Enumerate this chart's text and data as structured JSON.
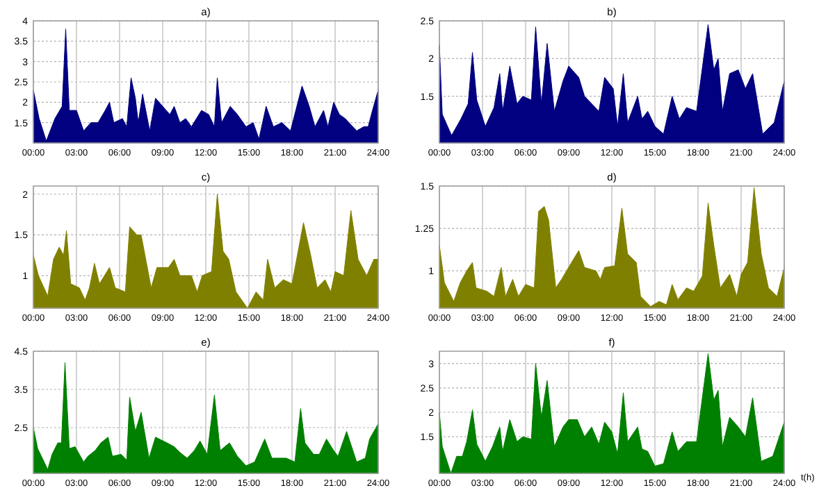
{
  "chart_data": [
    {
      "type": "area",
      "title": "a)",
      "color": "#000080",
      "grid": true,
      "xlim": [
        0,
        24
      ],
      "xticks": [
        {
          "value": 0,
          "label": "00:00"
        },
        {
          "value": 3,
          "label": "03:00"
        },
        {
          "value": 6,
          "label": "06:00"
        },
        {
          "value": 9,
          "label": "09:00"
        },
        {
          "value": 12,
          "label": "12:00"
        },
        {
          "value": 15,
          "label": "15:00"
        },
        {
          "value": 18,
          "label": "18:00"
        },
        {
          "value": 21,
          "label": "21:00"
        },
        {
          "value": 24,
          "label": "24:00"
        }
      ],
      "ylim": [
        1,
        4
      ],
      "yticks": [
        1.5,
        2,
        2.5,
        3,
        3.5,
        4
      ],
      "x": [
        0,
        0.4,
        0.9,
        1.5,
        2.0,
        2.25,
        2.5,
        3.0,
        3.5,
        4.0,
        4.5,
        5.0,
        5.3,
        5.6,
        6.2,
        6.5,
        6.8,
        7.1,
        7.3,
        7.6,
        8.1,
        8.5,
        9.0,
        9.5,
        9.8,
        10.2,
        10.6,
        11.0,
        11.7,
        12.2,
        12.6,
        12.8,
        13.1,
        13.7,
        14.2,
        14.8,
        15.3,
        15.7,
        16.2,
        16.7,
        17.3,
        17.9,
        18.7,
        19.2,
        19.6,
        20.2,
        20.5,
        20.9,
        21.3,
        21.7,
        22.5,
        23.0,
        23.3,
        23.6,
        24
      ],
      "values": [
        2.3,
        1.6,
        1.05,
        1.6,
        1.9,
        3.8,
        1.8,
        1.8,
        1.3,
        1.5,
        1.5,
        1.8,
        2.0,
        1.5,
        1.6,
        1.4,
        2.6,
        2.1,
        1.5,
        2.2,
        1.3,
        2.1,
        1.9,
        1.7,
        1.9,
        1.5,
        1.6,
        1.4,
        1.8,
        1.7,
        1.4,
        2.6,
        1.5,
        1.9,
        1.7,
        1.4,
        1.5,
        1.1,
        1.9,
        1.4,
        1.5,
        1.3,
        2.4,
        1.9,
        1.4,
        1.8,
        1.4,
        2.0,
        1.7,
        1.6,
        1.3,
        1.4,
        1.4,
        1.8,
        2.3
      ]
    },
    {
      "type": "area",
      "title": "b)",
      "color": "#000080",
      "grid": true,
      "xlim": [
        0,
        24
      ],
      "xticks": [
        {
          "value": 0,
          "label": "00:00"
        },
        {
          "value": 3,
          "label": "03:00"
        },
        {
          "value": 6,
          "label": "06:00"
        },
        {
          "value": 9,
          "label": "09:00"
        },
        {
          "value": 12,
          "label": "12:00"
        },
        {
          "value": 15,
          "label": "15:00"
        },
        {
          "value": 18,
          "label": "18:00"
        },
        {
          "value": 21,
          "label": "21:00"
        },
        {
          "value": 24,
          "label": "24:00"
        }
      ],
      "ylim": [
        0.88,
        2.5
      ],
      "yticks": [
        1.5,
        2,
        2.5
      ],
      "x": [
        0,
        0.2,
        0.85,
        1.5,
        2,
        2.3,
        2.6,
        3.2,
        3.8,
        4.2,
        4.4,
        4.9,
        5.4,
        5.8,
        6.4,
        6.7,
        7.1,
        7.5,
        8,
        8.6,
        9.0,
        9.7,
        10.1,
        10.6,
        11.1,
        11.5,
        12.1,
        12.4,
        12.8,
        13.1,
        13.8,
        14.1,
        14.5,
        15,
        15.6,
        16.2,
        16.7,
        17.2,
        17.9,
        18.7,
        19.1,
        19.4,
        19.7,
        20.2,
        20.8,
        21.3,
        21.8,
        22.5,
        23.3,
        24
      ],
      "values": [
        2.18,
        1.26,
        0.98,
        1.2,
        1.4,
        2.08,
        1.45,
        1.1,
        1.35,
        1.8,
        1.3,
        1.9,
        1.4,
        1.5,
        1.45,
        2.42,
        1.4,
        2.2,
        1.3,
        1.7,
        1.9,
        1.75,
        1.5,
        1.4,
        1.3,
        1.75,
        1.6,
        1.1,
        1.8,
        1.15,
        1.5,
        1.2,
        1.3,
        1.1,
        1.0,
        1.5,
        1.2,
        1.35,
        1.3,
        2.45,
        1.85,
        2.0,
        1.3,
        1.8,
        1.85,
        1.6,
        1.8,
        1.0,
        1.15,
        1.7
      ]
    },
    {
      "type": "area",
      "title": "c)",
      "color": "#808000",
      "grid": true,
      "xlim": [
        0,
        24
      ],
      "xticks": [
        {
          "value": 0,
          "label": "00:00"
        },
        {
          "value": 3,
          "label": "03:00"
        },
        {
          "value": 6,
          "label": "06:00"
        },
        {
          "value": 9,
          "label": "09:00"
        },
        {
          "value": 12,
          "label": "12:00"
        },
        {
          "value": 15,
          "label": "15:00"
        },
        {
          "value": 18,
          "label": "18:00"
        },
        {
          "value": 21,
          "label": "21:00"
        },
        {
          "value": 24,
          "label": "24:00"
        }
      ],
      "ylim": [
        0.6,
        2.1
      ],
      "yticks": [
        1,
        1.5,
        2
      ],
      "x": [
        0,
        0.35,
        1,
        1.4,
        1.8,
        2.1,
        2.3,
        2.6,
        3.2,
        3.6,
        3.9,
        4.25,
        4.6,
        5.3,
        5.7,
        6.4,
        6.7,
        7.2,
        7.5,
        8.2,
        8.6,
        9.4,
        9.8,
        10.2,
        11,
        11.4,
        11.75,
        12.4,
        12.8,
        13.2,
        13.6,
        14.1,
        14.9,
        15.5,
        16,
        16.3,
        16.8,
        17.4,
        18,
        18.8,
        19.3,
        19.75,
        20.3,
        20.7,
        21,
        21.6,
        22.1,
        22.6,
        23.2,
        23.7,
        24
      ],
      "values": [
        1.25,
        1.0,
        0.75,
        1.2,
        1.35,
        1.25,
        1.55,
        0.9,
        0.85,
        0.7,
        0.85,
        1.15,
        0.9,
        1.1,
        0.85,
        0.8,
        1.6,
        1.5,
        1.5,
        0.85,
        1.1,
        1.1,
        1.2,
        1.0,
        1.0,
        0.8,
        1.0,
        1.05,
        2.0,
        1.3,
        1.2,
        0.8,
        0.6,
        0.8,
        0.7,
        1.2,
        0.85,
        0.95,
        0.9,
        1.65,
        1.25,
        0.85,
        0.95,
        0.8,
        1.05,
        1.0,
        1.8,
        1.2,
        1.0,
        1.2,
        1.2
      ]
    },
    {
      "type": "area",
      "title": "d)",
      "color": "#808000",
      "grid": true,
      "xlim": [
        0,
        24
      ],
      "xticks": [
        {
          "value": 0,
          "label": "00:00"
        },
        {
          "value": 3,
          "label": "03:00"
        },
        {
          "value": 6,
          "label": "06:00"
        },
        {
          "value": 9,
          "label": "09:00"
        },
        {
          "value": 12,
          "label": "12:00"
        },
        {
          "value": 15,
          "label": "15:00"
        },
        {
          "value": 18,
          "label": "18:00"
        },
        {
          "value": 21,
          "label": "21:00"
        },
        {
          "value": 24,
          "label": "24:00"
        }
      ],
      "ylim": [
        0.78,
        1.5
      ],
      "yticks": [
        1,
        1.25,
        1.5
      ],
      "x": [
        0,
        0.35,
        1,
        1.45,
        1.9,
        2.3,
        2.55,
        3.3,
        3.8,
        4.3,
        4.6,
        5.1,
        5.5,
        6,
        6.6,
        6.9,
        7.3,
        7.6,
        8.1,
        8.5,
        9.2,
        9.7,
        10.1,
        10.9,
        11.2,
        11.5,
        12.2,
        12.7,
        13.1,
        13.7,
        14,
        14.7,
        15.3,
        15.8,
        16.2,
        16.6,
        17.2,
        17.7,
        18.3,
        18.7,
        19.1,
        19.55,
        20.2,
        20.7,
        21,
        21.45,
        21.9,
        22.4,
        22.9,
        23.5,
        24
      ],
      "values": [
        1.15,
        0.93,
        0.82,
        0.93,
        1.0,
        1.05,
        0.9,
        0.88,
        0.85,
        1.02,
        0.85,
        0.95,
        0.85,
        0.92,
        0.9,
        1.35,
        1.38,
        1.3,
        0.9,
        0.95,
        1.05,
        1.12,
        1.02,
        1.0,
        0.95,
        1.02,
        1.03,
        1.37,
        1.1,
        1.05,
        0.85,
        0.79,
        0.82,
        0.8,
        0.92,
        0.83,
        0.9,
        0.88,
        0.97,
        1.4,
        1.15,
        0.9,
        0.98,
        0.85,
        0.98,
        1.05,
        1.49,
        1.1,
        0.9,
        0.85,
        1.02
      ]
    },
    {
      "type": "area",
      "title": "e)",
      "color": "#008000",
      "grid": true,
      "xlim": [
        0,
        24
      ],
      "xticks": [
        {
          "value": 0,
          "label": "00:00"
        },
        {
          "value": 3,
          "label": "03:00"
        },
        {
          "value": 6,
          "label": "06:00"
        },
        {
          "value": 9,
          "label": "09:00"
        },
        {
          "value": 12,
          "label": "12:00"
        },
        {
          "value": 15,
          "label": "15:00"
        },
        {
          "value": 18,
          "label": "18:00"
        },
        {
          "value": 21,
          "label": "21:00"
        },
        {
          "value": 24,
          "label": "24:00"
        }
      ],
      "ylim": [
        1.3,
        4.5
      ],
      "yticks": [
        2.5,
        3.5,
        4.5
      ],
      "x": [
        0,
        0.3,
        0.75,
        1,
        1.3,
        1.7,
        1.95,
        2.2,
        2.5,
        2.9,
        3.5,
        3.8,
        4.3,
        4.7,
        5.2,
        5.5,
        6.1,
        6.5,
        6.7,
        7.1,
        7.5,
        8.05,
        8.5,
        9.3,
        9.8,
        10.2,
        10.7,
        11.2,
        11.6,
        12.1,
        12.6,
        13,
        13.65,
        14.2,
        14.8,
        15.4,
        16.1,
        16.6,
        17.6,
        18.2,
        18.6,
        18.9,
        19.5,
        19.9,
        20.4,
        20.9,
        21.2,
        21.8,
        22.5,
        23.1,
        23.4,
        24
      ],
      "values": [
        2.5,
        1.95,
        1.6,
        1.4,
        1.8,
        2.1,
        2.1,
        4.2,
        1.95,
        2.0,
        1.6,
        1.75,
        1.9,
        2.1,
        2.25,
        1.75,
        1.8,
        1.65,
        3.3,
        2.4,
        2.9,
        1.7,
        2.25,
        2.1,
        2.0,
        1.85,
        1.7,
        1.9,
        2.15,
        1.8,
        3.35,
        1.9,
        2.1,
        1.75,
        1.5,
        1.6,
        2.2,
        1.7,
        1.7,
        1.6,
        3.0,
        2.1,
        1.8,
        1.8,
        2.2,
        1.9,
        1.75,
        2.4,
        1.6,
        1.7,
        2.2,
        2.6
      ]
    },
    {
      "type": "area",
      "title": "f)",
      "xlabel": "t(h)",
      "color": "#008000",
      "grid": true,
      "xlim": [
        0,
        24
      ],
      "xticks": [
        {
          "value": 0,
          "label": "00:00"
        },
        {
          "value": 3,
          "label": "03:00"
        },
        {
          "value": 6,
          "label": "06:00"
        },
        {
          "value": 9,
          "label": "09:00"
        },
        {
          "value": 12,
          "label": "12:00"
        },
        {
          "value": 15,
          "label": "15:00"
        },
        {
          "value": 18,
          "label": "18:00"
        },
        {
          "value": 21,
          "label": "21:00"
        },
        {
          "value": 24,
          "label": "24:00"
        }
      ],
      "ylim": [
        0.75,
        3.25
      ],
      "yticks": [
        1.5,
        2,
        2.5,
        3
      ],
      "x": [
        0,
        0.2,
        0.8,
        1.2,
        1.6,
        1.9,
        2.3,
        2.6,
        3.2,
        3.7,
        4.2,
        4.4,
        4.9,
        5.4,
        5.8,
        6.4,
        6.7,
        7.1,
        7.5,
        8.0,
        8.6,
        9.0,
        9.6,
        10.1,
        10.6,
        11.1,
        11.5,
        12.0,
        12.4,
        12.8,
        13.1,
        13.8,
        14.1,
        14.5,
        15,
        15.6,
        16.2,
        16.6,
        17.2,
        17.9,
        18.7,
        19.1,
        19.4,
        19.7,
        20.2,
        20.8,
        21.3,
        21.8,
        22.4,
        23.2,
        24
      ],
      "values": [
        2.0,
        1.3,
        0.75,
        1.1,
        1.1,
        1.4,
        2.05,
        1.35,
        1.0,
        1.3,
        1.7,
        1.2,
        1.85,
        1.4,
        1.5,
        1.45,
        3.0,
        1.9,
        2.65,
        1.3,
        1.7,
        1.85,
        1.85,
        1.5,
        1.7,
        1.35,
        1.8,
        1.6,
        1.15,
        2.4,
        1.4,
        1.7,
        1.25,
        1.2,
        0.9,
        0.95,
        1.6,
        1.2,
        1.4,
        1.4,
        3.2,
        2.25,
        2.45,
        1.3,
        1.9,
        1.7,
        1.5,
        2.3,
        1.0,
        1.1,
        1.8
      ]
    }
  ]
}
